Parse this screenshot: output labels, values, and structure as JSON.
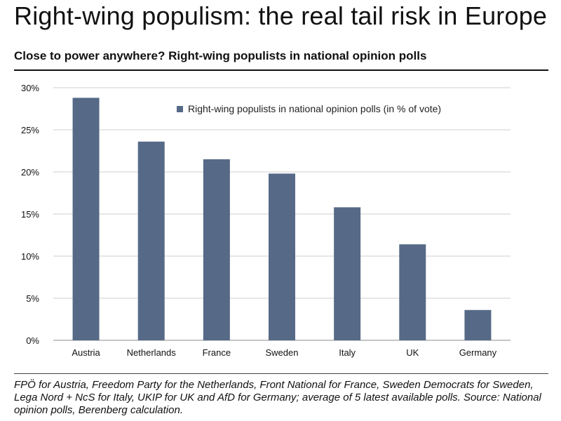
{
  "header": {
    "headline": "Right-wing populism: the real tail risk in Europe",
    "subtitle": "Close to power anywhere? Right-wing populists in national opinion polls"
  },
  "footnote": "FPÖ for Austria, Freedom Party for the Netherlands, Front National for France, Sweden Democrats for Sweden, Lega Nord + NcS for Italy, UKIP for UK and AfD for Germany; average of 5 latest available polls. Source:  National opinion polls, Berenberg calculation.",
  "chart_data": {
    "type": "bar",
    "categories": [
      "Austria",
      "Netherlands",
      "France",
      "Sweden",
      "Italy",
      "UK",
      "Germany"
    ],
    "series": [
      {
        "name": "Right-wing populists in national opinion polls (in % of vote)",
        "values": [
          28.8,
          23.6,
          21.5,
          19.8,
          15.8,
          11.4,
          3.6
        ],
        "color": "#566a87"
      }
    ],
    "ylim": [
      0,
      30
    ],
    "yticks": [
      "0%",
      "5%",
      "10%",
      "15%",
      "20%",
      "25%",
      "30%"
    ],
    "ytick_values": [
      0,
      5,
      10,
      15,
      20,
      25,
      30
    ],
    "grid": true,
    "legend_position": "top-right",
    "gridline_color": "#cfcfcf",
    "axis_color": "#8c8c8c"
  }
}
